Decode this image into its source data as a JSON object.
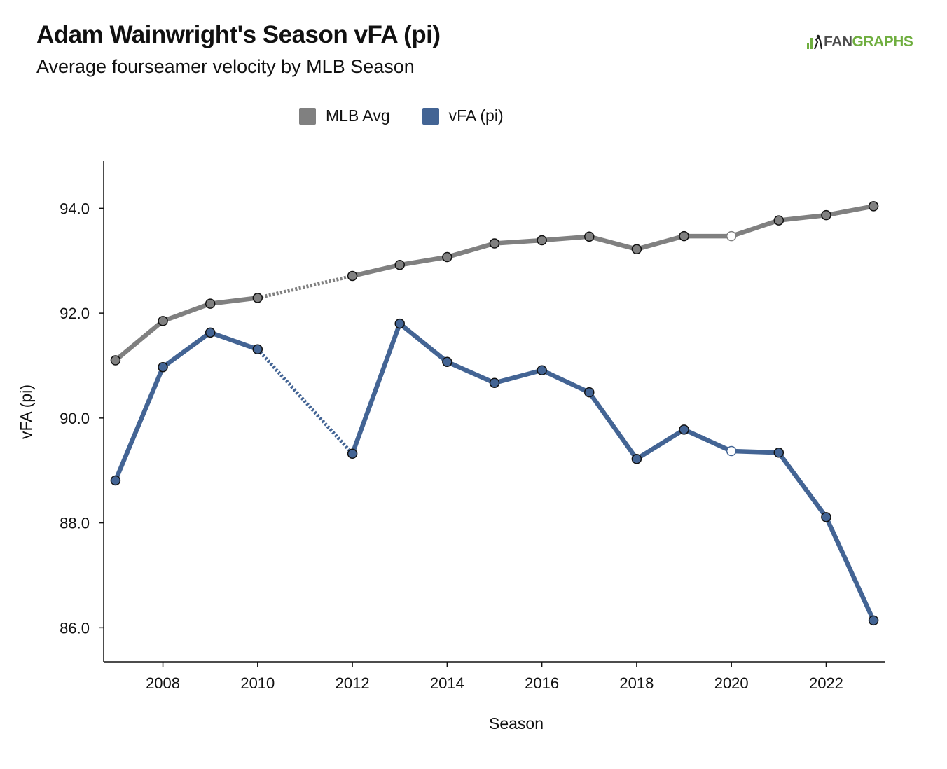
{
  "header": {
    "title": "Adam Wainwright's Season vFA (pi)",
    "subtitle": "Average fourseamer velocity by MLB Season"
  },
  "brand": {
    "name_part1": "FAN",
    "name_part2": "GRAPHS",
    "icon": "fangraphs-logo-icon"
  },
  "colors": {
    "mlb_avg": "#808080",
    "vfa": "#436494",
    "brand_green": "#6fae3f"
  },
  "chart_data": {
    "type": "line",
    "title": "Adam Wainwright's Season vFA (pi)",
    "subtitle": "Average fourseamer velocity by MLB Season",
    "xlabel": "Season",
    "ylabel": "vFA (pi)",
    "xlim": [
      2006.75,
      2023.25
    ],
    "ylim": [
      85.35,
      94.9
    ],
    "xticks": [
      2008,
      2010,
      2012,
      2014,
      2016,
      2018,
      2020,
      2022
    ],
    "yticks": [
      "86.0",
      "88.0",
      "90.0",
      "92.0",
      "94.0"
    ],
    "legend_position": "top",
    "grid": false,
    "gap_years": [
      2011
    ],
    "series": [
      {
        "name": "MLB Avg",
        "color": "#808080",
        "points": [
          {
            "x": 2007,
            "y": 91.1
          },
          {
            "x": 2008,
            "y": 91.85
          },
          {
            "x": 2009,
            "y": 92.18
          },
          {
            "x": 2010,
            "y": 92.29
          },
          {
            "x": 2012,
            "y": 92.71
          },
          {
            "x": 2013,
            "y": 92.92
          },
          {
            "x": 2014,
            "y": 93.07
          },
          {
            "x": 2015,
            "y": 93.33
          },
          {
            "x": 2016,
            "y": 93.39
          },
          {
            "x": 2017,
            "y": 93.46
          },
          {
            "x": 2018,
            "y": 93.22
          },
          {
            "x": 2019,
            "y": 93.47
          },
          {
            "x": 2020,
            "y": 93.47,
            "hollow": true
          },
          {
            "x": 2021,
            "y": 93.77
          },
          {
            "x": 2022,
            "y": 93.87
          },
          {
            "x": 2023,
            "y": 94.04
          }
        ]
      },
      {
        "name": "vFA (pi)",
        "color": "#436494",
        "points": [
          {
            "x": 2007,
            "y": 88.81
          },
          {
            "x": 2008,
            "y": 90.97
          },
          {
            "x": 2009,
            "y": 91.63
          },
          {
            "x": 2010,
            "y": 91.31
          },
          {
            "x": 2012,
            "y": 89.32
          },
          {
            "x": 2013,
            "y": 91.8
          },
          {
            "x": 2014,
            "y": 91.07
          },
          {
            "x": 2015,
            "y": 90.67
          },
          {
            "x": 2016,
            "y": 90.91
          },
          {
            "x": 2017,
            "y": 90.49
          },
          {
            "x": 2018,
            "y": 89.22
          },
          {
            "x": 2019,
            "y": 89.78
          },
          {
            "x": 2020,
            "y": 89.37,
            "hollow": true
          },
          {
            "x": 2021,
            "y": 89.34
          },
          {
            "x": 2022,
            "y": 88.11
          },
          {
            "x": 2023,
            "y": 86.14
          }
        ]
      }
    ]
  }
}
